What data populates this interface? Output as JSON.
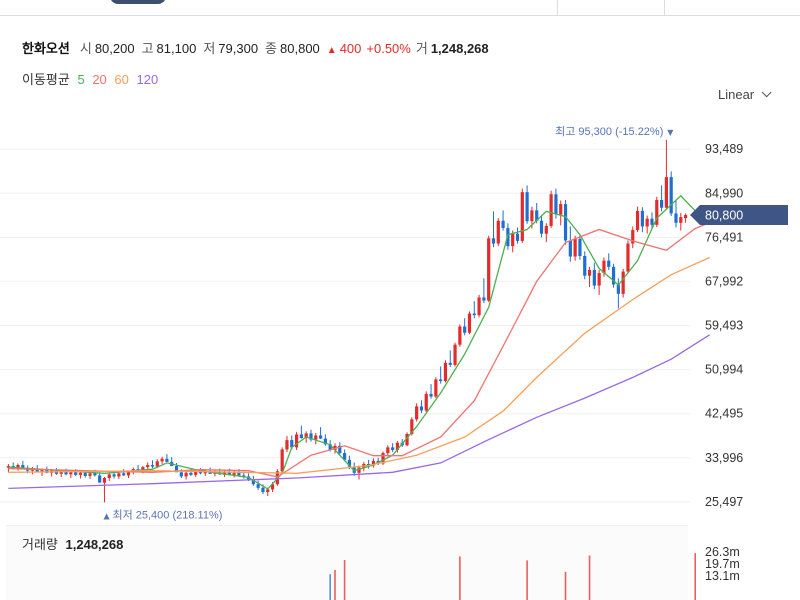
{
  "header": {
    "stock_name": "한화오션",
    "open_label": "시",
    "open": "80,200",
    "high_label": "고",
    "high": "81,100",
    "low_label": "저",
    "low": "79,300",
    "close_label": "종",
    "close": "80,800",
    "change_arrow": "▲",
    "change": "400",
    "change_pct": "+0.50%",
    "volume_label": "거",
    "volume": "1,248,268"
  },
  "moving_average": {
    "title": "이동평균",
    "periods": [
      "5",
      "20",
      "60",
      "120"
    ]
  },
  "scale": {
    "mode": "Linear"
  },
  "annotations": {
    "max_text": "최고 95,300 (-15.22%)",
    "max_marker": "▼",
    "min_text": "최저 25,400 (218.11%)",
    "min_marker": "▲",
    "price_tag": "80,800"
  },
  "volume_panel": {
    "title": "거래량",
    "value": "1,248,268",
    "ticks": [
      "26.3m",
      "19.7m",
      "13.1m"
    ]
  },
  "colors": {
    "up": "#e22b2b",
    "down": "#1f6fd1",
    "ma5": "#4cb050",
    "ma20": "#f0736f",
    "ma60": "#f5a15b",
    "ma120": "#9868e8",
    "price_tag_bg": "#3f5586",
    "annotation": "#5873b5"
  },
  "chart_data": {
    "type": "candlestick",
    "y_ticks": [
      93489,
      84990,
      76491,
      67992,
      59493,
      50994,
      42495,
      33996,
      25497
    ],
    "ylim": [
      22000,
      99500
    ],
    "grid": true,
    "candles": [
      [
        32100,
        32800,
        31200,
        32400
      ],
      [
        32400,
        33100,
        31700,
        32000
      ],
      [
        32000,
        32900,
        31500,
        32600
      ],
      [
        32600,
        33400,
        32000,
        31900
      ],
      [
        31900,
        32500,
        31000,
        31500
      ],
      [
        31500,
        32200,
        30800,
        31900
      ],
      [
        31900,
        32600,
        31300,
        31200
      ],
      [
        31200,
        31900,
        30500,
        31600
      ],
      [
        31600,
        32300,
        31000,
        31100
      ],
      [
        31100,
        31800,
        30400,
        31500
      ],
      [
        31500,
        32000,
        30700,
        30900
      ],
      [
        30900,
        31700,
        30300,
        31300
      ],
      [
        31300,
        31900,
        30600,
        30800
      ],
      [
        30800,
        31500,
        30100,
        31200
      ],
      [
        31200,
        31800,
        30500,
        30700
      ],
      [
        30700,
        31400,
        30000,
        31100
      ],
      [
        31100,
        31600,
        30200,
        30500
      ],
      [
        30500,
        31300,
        29900,
        31000
      ],
      [
        31000,
        31700,
        30400,
        30600
      ],
      [
        30600,
        31200,
        29600,
        29200
      ],
      [
        29200,
        30300,
        25400,
        30100
      ],
      [
        30100,
        31100,
        29500,
        30800
      ],
      [
        30800,
        31500,
        30000,
        30400
      ],
      [
        30400,
        31300,
        29900,
        31000
      ],
      [
        31000,
        31800,
        30500,
        30600
      ],
      [
        30600,
        31400,
        30100,
        31200
      ],
      [
        31200,
        32100,
        30800,
        31800
      ],
      [
        31800,
        32600,
        31200,
        31400
      ],
      [
        31400,
        32400,
        31000,
        32200
      ],
      [
        32200,
        33100,
        31700,
        32600
      ],
      [
        32600,
        33500,
        32000,
        32300
      ],
      [
        32300,
        33700,
        32000,
        33300
      ],
      [
        33300,
        34200,
        32800,
        33800
      ],
      [
        33800,
        34700,
        33200,
        33200
      ],
      [
        33200,
        34100,
        32600,
        32400
      ],
      [
        32400,
        33000,
        31500,
        31200
      ],
      [
        31200,
        31800,
        30100,
        30400
      ],
      [
        30400,
        31300,
        29800,
        31100
      ],
      [
        31100,
        31900,
        30500,
        30700
      ],
      [
        30700,
        31600,
        30300,
        31300
      ],
      [
        31300,
        32000,
        30800,
        31000
      ],
      [
        31000,
        31800,
        30500,
        31400
      ],
      [
        31400,
        32100,
        30900,
        30900
      ],
      [
        30900,
        31700,
        30400,
        31300
      ],
      [
        31300,
        31900,
        30700,
        30800
      ],
      [
        30800,
        31600,
        30300,
        31200
      ],
      [
        31200,
        31900,
        30600,
        30700
      ],
      [
        30700,
        31500,
        30200,
        31100
      ],
      [
        31100,
        31800,
        30600,
        30600
      ],
      [
        30600,
        31300,
        30000,
        30400
      ],
      [
        30400,
        31000,
        29500,
        29800
      ],
      [
        29800,
        30500,
        28600,
        28900
      ],
      [
        28900,
        29600,
        27800,
        28200
      ],
      [
        28200,
        28900,
        27000,
        27400
      ],
      [
        27400,
        28200,
        26600,
        27900
      ],
      [
        27900,
        29300,
        27400,
        28900
      ],
      [
        28900,
        31800,
        28600,
        31400
      ],
      [
        31400,
        36000,
        31000,
        35600
      ],
      [
        35600,
        38200,
        35100,
        37400
      ],
      [
        37400,
        38300,
        35600,
        36000
      ],
      [
        36000,
        39000,
        35500,
        38500
      ],
      [
        38500,
        40200,
        37700,
        37800
      ],
      [
        37800,
        39100,
        36900,
        38700
      ],
      [
        38700,
        39400,
        37100,
        37500
      ],
      [
        37500,
        38800,
        36600,
        38300
      ],
      [
        38300,
        39900,
        37600,
        37700
      ],
      [
        37700,
        38500,
        36300,
        36600
      ],
      [
        36600,
        37400,
        35200,
        35500
      ],
      [
        35500,
        36800,
        34800,
        36300
      ],
      [
        36300,
        37000,
        34600,
        34900
      ],
      [
        34900,
        35600,
        33300,
        33600
      ],
      [
        33600,
        34400,
        31800,
        32300
      ],
      [
        32300,
        33100,
        30500,
        31100
      ],
      [
        31100,
        32500,
        29800,
        32100
      ],
      [
        32100,
        33200,
        31400,
        32800
      ],
      [
        32800,
        33600,
        31900,
        32500
      ],
      [
        32500,
        33900,
        32100,
        33400
      ],
      [
        33400,
        34000,
        32600,
        32900
      ],
      [
        32900,
        35200,
        32600,
        34900
      ],
      [
        34900,
        36400,
        34300,
        36000
      ],
      [
        36000,
        36800,
        35100,
        35500
      ],
      [
        35500,
        37200,
        35000,
        36900
      ],
      [
        36900,
        37600,
        36100,
        36400
      ],
      [
        36400,
        38900,
        36200,
        38600
      ],
      [
        38600,
        41800,
        38300,
        41400
      ],
      [
        41400,
        44500,
        41000,
        43900
      ],
      [
        43900,
        45100,
        42600,
        43100
      ],
      [
        43100,
        46800,
        42800,
        46300
      ],
      [
        46300,
        48200,
        45400,
        45800
      ],
      [
        45800,
        49500,
        45500,
        49100
      ],
      [
        49100,
        51600,
        48300,
        48800
      ],
      [
        48800,
        52800,
        48500,
        52300
      ],
      [
        52300,
        54700,
        51500,
        51900
      ],
      [
        51900,
        56200,
        51600,
        55800
      ],
      [
        55800,
        59700,
        55400,
        59300
      ],
      [
        59300,
        60900,
        57600,
        58100
      ],
      [
        58100,
        62200,
        57800,
        61800
      ],
      [
        61800,
        64200,
        60900,
        61500
      ],
      [
        61500,
        65400,
        61100,
        64900
      ],
      [
        64900,
        68600,
        63800,
        64300
      ],
      [
        64300,
        76800,
        64000,
        76300
      ],
      [
        76300,
        81500,
        74600,
        75300
      ],
      [
        75300,
        80200,
        74800,
        79700
      ],
      [
        79700,
        81700,
        77800,
        78300
      ],
      [
        78300,
        79200,
        74100,
        74800
      ],
      [
        74800,
        77800,
        73600,
        77200
      ],
      [
        77200,
        78400,
        75300,
        75800
      ],
      [
        75800,
        85900,
        75400,
        85200
      ],
      [
        85200,
        86500,
        79100,
        79600
      ],
      [
        79600,
        82400,
        78200,
        81700
      ],
      [
        81700,
        83100,
        79200,
        79700
      ],
      [
        79700,
        80600,
        76500,
        77200
      ],
      [
        77200,
        79200,
        75600,
        78700
      ],
      [
        78700,
        85500,
        78300,
        84800
      ],
      [
        84800,
        85900,
        80100,
        80900
      ],
      [
        80900,
        83600,
        78800,
        82900
      ],
      [
        82900,
        83700,
        75100,
        75900
      ],
      [
        75900,
        78600,
        71800,
        72800
      ],
      [
        72800,
        76800,
        72000,
        76200
      ],
      [
        76200,
        77000,
        72200,
        72900
      ],
      [
        72900,
        73800,
        68400,
        69100
      ],
      [
        69100,
        70800,
        66900,
        70200
      ],
      [
        70200,
        71600,
        66500,
        67200
      ],
      [
        67200,
        70200,
        65400,
        69600
      ],
      [
        69600,
        72600,
        68900,
        72000
      ],
      [
        72000,
        73400,
        70200,
        70800
      ],
      [
        70800,
        71400,
        66800,
        67400
      ],
      [
        67400,
        68600,
        62800,
        65600
      ],
      [
        65600,
        70400,
        64900,
        69900
      ],
      [
        69900,
        75900,
        69500,
        75300
      ],
      [
        75300,
        78600,
        74400,
        77900
      ],
      [
        77900,
        82400,
        77500,
        81600
      ],
      [
        81600,
        82300,
        77500,
        78600
      ],
      [
        78600,
        80700,
        77200,
        80100
      ],
      [
        80100,
        81300,
        78200,
        78900
      ],
      [
        78900,
        84300,
        78500,
        83700
      ],
      [
        83700,
        86500,
        81500,
        82200
      ],
      [
        82200,
        95300,
        82000,
        88100
      ],
      [
        88100,
        89200,
        80600,
        81100
      ],
      [
        81100,
        83700,
        78400,
        79300
      ],
      [
        79300,
        81200,
        77800,
        80400
      ],
      [
        80200,
        81100,
        79300,
        80800
      ]
    ],
    "ma_series": [
      {
        "name": "5",
        "points": [
          [
            0,
            32200
          ],
          [
            20,
            31000
          ],
          [
            30,
            31800
          ],
          [
            33,
            33000
          ],
          [
            40,
            31500
          ],
          [
            50,
            30200
          ],
          [
            54,
            28000
          ],
          [
            57,
            31000
          ],
          [
            59,
            36000
          ],
          [
            62,
            38000
          ],
          [
            67,
            36500
          ],
          [
            72,
            31500
          ],
          [
            76,
            32600
          ],
          [
            80,
            34500
          ],
          [
            85,
            40000
          ],
          [
            90,
            46500
          ],
          [
            95,
            54000
          ],
          [
            100,
            63000
          ],
          [
            104,
            77000
          ],
          [
            108,
            78000
          ],
          [
            112,
            81500
          ],
          [
            116,
            80500
          ],
          [
            119,
            77000
          ],
          [
            123,
            70500
          ],
          [
            127,
            67300
          ],
          [
            131,
            72000
          ],
          [
            135,
            80200
          ],
          [
            138,
            82800
          ],
          [
            140,
            84500
          ],
          [
            143,
            81600
          ],
          [
            146,
            80200
          ]
        ]
      },
      {
        "name": "20",
        "points": [
          [
            0,
            31900
          ],
          [
            20,
            31400
          ],
          [
            30,
            31200
          ],
          [
            40,
            31700
          ],
          [
            50,
            31500
          ],
          [
            56,
            30300
          ],
          [
            63,
            34500
          ],
          [
            70,
            36300
          ],
          [
            76,
            34400
          ],
          [
            82,
            34400
          ],
          [
            90,
            38000
          ],
          [
            97,
            45000
          ],
          [
            103,
            55500
          ],
          [
            110,
            68000
          ],
          [
            116,
            75500
          ],
          [
            123,
            78000
          ],
          [
            130,
            75800
          ],
          [
            137,
            74000
          ],
          [
            143,
            78200
          ],
          [
            146,
            79300
          ]
        ]
      },
      {
        "name": "60",
        "points": [
          [
            0,
            31200
          ],
          [
            30,
            31500
          ],
          [
            60,
            31000
          ],
          [
            75,
            32500
          ],
          [
            85,
            34500
          ],
          [
            95,
            38000
          ],
          [
            103,
            43000
          ],
          [
            110,
            49500
          ],
          [
            120,
            58000
          ],
          [
            130,
            64500
          ],
          [
            138,
            69300
          ],
          [
            146,
            72600
          ]
        ]
      },
      {
        "name": "120",
        "points": [
          [
            0,
            28100
          ],
          [
            30,
            29000
          ],
          [
            60,
            30100
          ],
          [
            80,
            31200
          ],
          [
            90,
            33000
          ],
          [
            100,
            37500
          ],
          [
            110,
            41800
          ],
          [
            120,
            45500
          ],
          [
            130,
            49500
          ],
          [
            138,
            53000
          ],
          [
            146,
            57700
          ]
        ]
      }
    ],
    "volume_ticks": [
      26.3,
      19.7,
      13.1
    ],
    "volume_ylim": [
      0,
      33
    ],
    "volume_spikes": [
      {
        "i": 68,
        "v": 16.5,
        "dir": "up"
      },
      {
        "i": 70,
        "v": 22.0,
        "dir": "up"
      },
      {
        "i": 67,
        "v": 14.2,
        "dir": "down"
      },
      {
        "i": 94,
        "v": 24.0,
        "dir": "up"
      },
      {
        "i": 108,
        "v": 21.8,
        "dir": "up"
      },
      {
        "i": 116,
        "v": 15.5,
        "dir": "up"
      },
      {
        "i": 121,
        "v": 24.5,
        "dir": "up"
      },
      {
        "i": 143,
        "v": 25.8,
        "dir": "up"
      }
    ]
  }
}
